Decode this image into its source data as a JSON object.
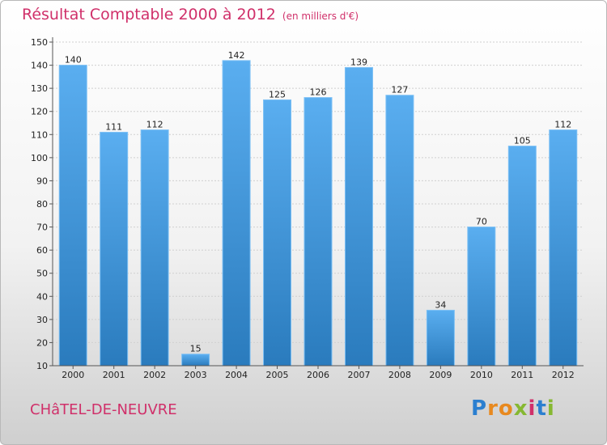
{
  "chart_data": {
    "type": "bar",
    "title": "Résultat Comptable 2000 à 2012",
    "subtitle": "(en milliers d'€)",
    "categories": [
      "2000",
      "2001",
      "2002",
      "2003",
      "2004",
      "2005",
      "2006",
      "2007",
      "2008",
      "2009",
      "2010",
      "2011",
      "2012"
    ],
    "values": [
      140,
      111,
      112,
      15,
      142,
      125,
      126,
      139,
      127,
      34,
      70,
      105,
      112
    ],
    "ylim": [
      10,
      150
    ],
    "yticks": [
      10,
      20,
      30,
      40,
      50,
      60,
      70,
      80,
      90,
      100,
      110,
      120,
      130,
      140,
      150
    ],
    "grid": true,
    "bar_color_top": "#5aaef0",
    "bar_color_bottom": "#2a7bbd"
  },
  "footer": {
    "commune": "CHâTEL-DE-NEUVRE",
    "logo_text": [
      "P",
      "r",
      "o",
      "x",
      "i",
      "t",
      "i"
    ]
  }
}
